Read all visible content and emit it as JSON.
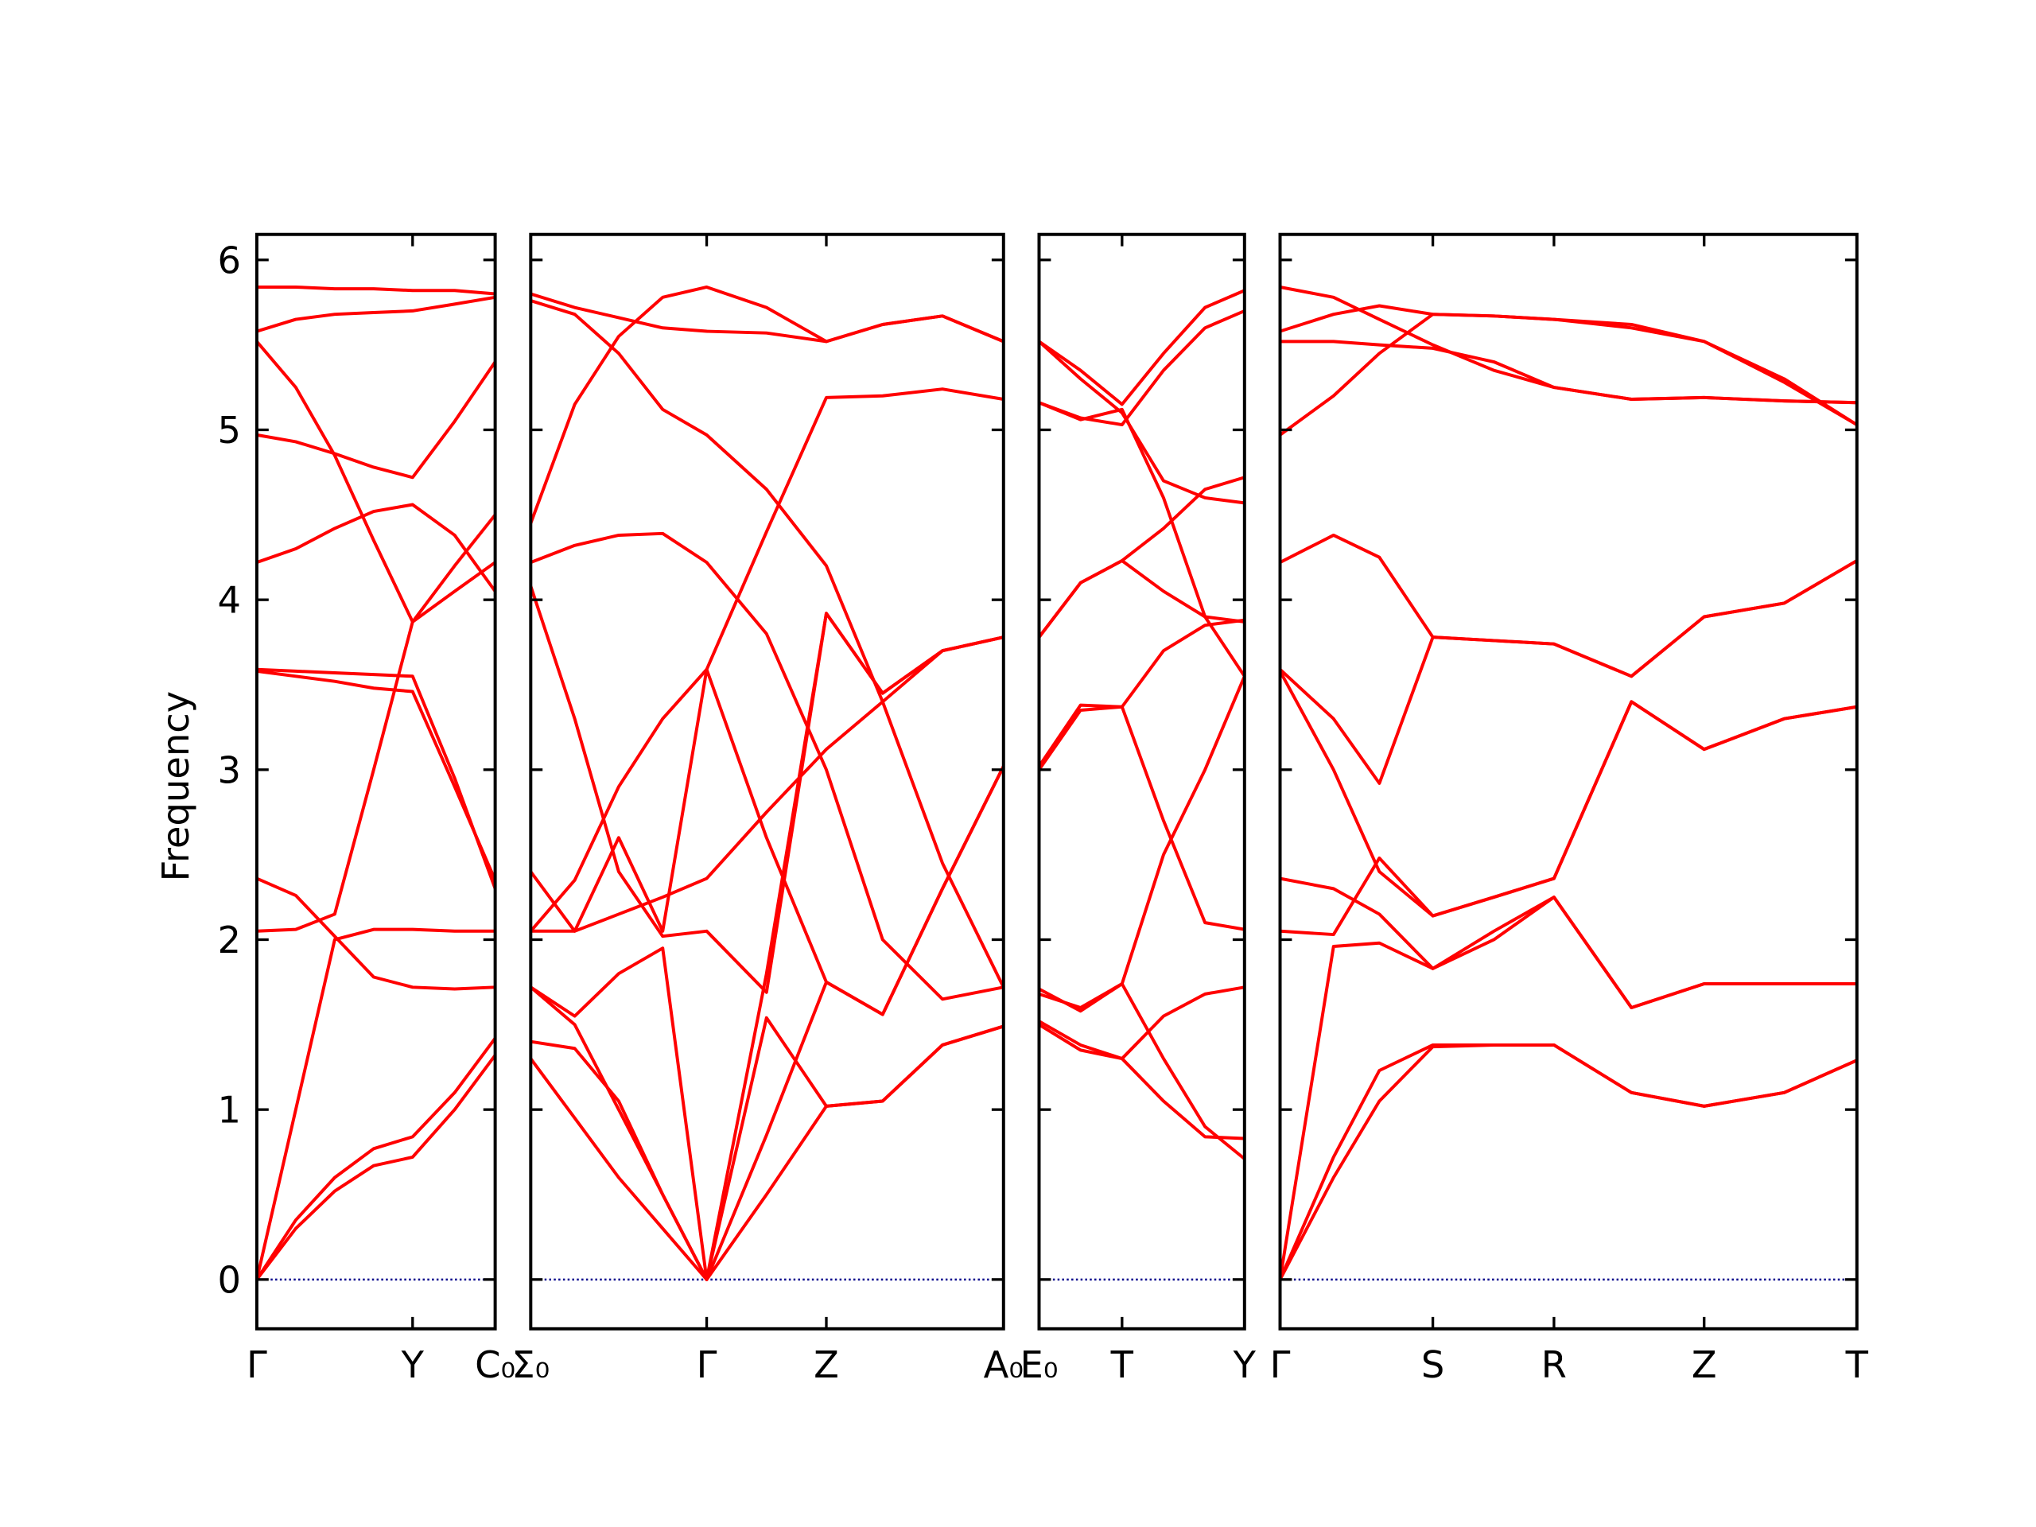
{
  "chart_data": [
    {
      "type": "line",
      "ylabel": "Frequency",
      "color": "#ff0000",
      "hline": 0,
      "hline_color": "#00008b",
      "xlim": [
        0,
        1.53
      ],
      "ylim": [
        -0.29,
        6.15
      ],
      "yticks": [
        0,
        1,
        2,
        3,
        4,
        5,
        6
      ],
      "show_ytick_labels": true,
      "xticks": [
        {
          "value": 0,
          "label": "Γ"
        },
        {
          "value": 1,
          "label": "Y"
        },
        {
          "value": 1.53,
          "label": "C₀"
        }
      ],
      "x": [
        0,
        0.25,
        0.5,
        0.75,
        1.0,
        1.27,
        1.53
      ],
      "series": [
        {
          "values": [
            5.84,
            5.84,
            5.83,
            5.83,
            5.82,
            5.82,
            5.8
          ]
        },
        {
          "values": [
            5.58,
            5.65,
            5.68,
            5.69,
            5.7,
            5.74,
            5.78
          ]
        },
        {
          "values": [
            5.52,
            5.25,
            4.85,
            4.35,
            3.87,
            4.05,
            4.22
          ]
        },
        {
          "values": [
            4.97,
            4.93,
            4.86,
            4.78,
            4.72,
            5.05,
            5.4
          ]
        },
        {
          "values": [
            4.22,
            4.3,
            4.42,
            4.52,
            4.56,
            4.38,
            4.05
          ]
        },
        {
          "values": [
            3.59,
            3.58,
            3.57,
            3.56,
            3.55,
            2.95,
            2.3
          ]
        },
        {
          "values": [
            3.58,
            3.55,
            3.52,
            3.48,
            3.46,
            2.9,
            2.35
          ]
        },
        {
          "values": [
            2.36,
            2.26,
            2.02,
            1.78,
            1.72,
            1.71,
            1.72
          ]
        },
        {
          "values": [
            2.05,
            2.06,
            2.15,
            3.0,
            3.87,
            4.2,
            4.5
          ]
        },
        {
          "values": [
            0,
            1.0,
            2.0,
            2.06,
            2.06,
            2.05,
            2.05
          ]
        },
        {
          "values": [
            0,
            0.35,
            0.6,
            0.77,
            0.84,
            1.1,
            1.42
          ]
        },
        {
          "values": [
            0,
            0.3,
            0.52,
            0.67,
            0.72,
            1.0,
            1.32
          ]
        }
      ]
    },
    {
      "type": "line",
      "color": "#ff0000",
      "hline": 0,
      "hline_color": "#00008b",
      "xlim": [
        0,
        2.687
      ],
      "ylim": [
        -0.29,
        6.15
      ],
      "yticks": [
        0,
        1,
        2,
        3,
        4,
        5,
        6
      ],
      "show_ytick_labels": false,
      "xticks": [
        {
          "value": 0,
          "label": "Σ₀"
        },
        {
          "value": 1,
          "label": "Γ"
        },
        {
          "value": 1.68,
          "label": "Z"
        },
        {
          "value": 2.687,
          "label": "A₀"
        }
      ],
      "x": [
        0,
        0.25,
        0.5,
        0.75,
        1.0,
        1.34,
        1.68,
        2.0,
        2.34,
        2.687
      ],
      "series": [
        {
          "values": [
            5.8,
            5.72,
            5.66,
            5.6,
            5.58,
            5.57,
            5.52,
            5.62,
            5.67,
            5.52
          ]
        },
        {
          "values": [
            5.76,
            5.68,
            5.45,
            5.12,
            4.97,
            4.65,
            4.2,
            3.4,
            2.45,
            1.72
          ]
        },
        {
          "values": [
            4.45,
            5.15,
            5.55,
            5.78,
            5.84,
            5.72,
            5.52,
            5.62,
            5.67,
            5.52
          ]
        },
        {
          "values": [
            2.05,
            2.35,
            2.9,
            3.3,
            3.59,
            4.4,
            5.19,
            5.2,
            5.24,
            5.18
          ]
        },
        {
          "values": [
            4.22,
            4.32,
            4.38,
            4.39,
            4.22,
            3.8,
            3.0,
            2.0,
            1.65,
            1.72
          ]
        },
        {
          "values": [
            4.08,
            3.3,
            2.4,
            2.02,
            2.05,
            1.69,
            3.92,
            3.45,
            3.7,
            3.78
          ]
        },
        {
          "values": [
            2.4,
            2.05,
            2.15,
            2.25,
            2.36,
            2.75,
            3.12,
            3.4,
            3.7,
            3.78
          ]
        },
        {
          "values": [
            2.05,
            2.05,
            2.6,
            2.05,
            3.59,
            2.6,
            1.75,
            1.56,
            2.3,
            3.02
          ]
        },
        {
          "values": [
            1.72,
            1.55,
            1.8,
            1.95,
            0,
            1.54,
            1.02,
            1.05,
            1.38,
            1.49
          ]
        },
        {
          "values": [
            1.4,
            1.36,
            1.05,
            0.5,
            0,
            0.85,
            1.75,
            1.56,
            2.3,
            3.02
          ]
        },
        {
          "values": [
            1.3,
            0.95,
            0.6,
            0.3,
            0,
            0.5,
            1.02,
            1.05,
            1.38,
            1.49
          ]
        },
        {
          "values": [
            1.72,
            1.5,
            1.0,
            0.5,
            0,
            1.8,
            3.92,
            3.45,
            3.7,
            3.78
          ]
        }
      ]
    },
    {
      "type": "line",
      "color": "#ff0000",
      "hline": 0,
      "hline_color": "#00008b",
      "xlim": [
        0,
        2.476
      ],
      "ylim": [
        -0.29,
        6.15
      ],
      "yticks": [
        0,
        1,
        2,
        3,
        4,
        5,
        6
      ],
      "show_ytick_labels": false,
      "xticks": [
        {
          "value": 0,
          "label": "E₀"
        },
        {
          "value": 1,
          "label": "T"
        },
        {
          "value": 2.476,
          "label": "Y"
        }
      ],
      "x": [
        0,
        0.5,
        1.0,
        1.5,
        2.0,
        2.476
      ],
      "series": [
        {
          "values": [
            5.52,
            5.35,
            5.15,
            5.45,
            5.72,
            5.82
          ]
        },
        {
          "values": [
            5.16,
            5.07,
            5.03,
            5.35,
            5.6,
            5.7
          ]
        },
        {
          "values": [
            3.78,
            4.1,
            4.23,
            4.42,
            4.65,
            4.72
          ]
        },
        {
          "values": [
            3.02,
            3.38,
            3.37,
            2.7,
            2.1,
            2.06
          ]
        },
        {
          "values": [
            1.71,
            1.58,
            1.74,
            2.5,
            3.0,
            3.55
          ]
        },
        {
          "values": [
            1.5,
            1.35,
            1.3,
            1.55,
            1.68,
            1.72
          ]
        },
        {
          "values": [
            1.52,
            1.38,
            1.3,
            1.05,
            0.84,
            0.83
          ]
        },
        {
          "values": [
            1.68,
            1.6,
            1.74,
            1.3,
            0.9,
            0.71
          ]
        },
        {
          "values": [
            5.16,
            5.06,
            5.12,
            4.6,
            3.9,
            3.55
          ]
        },
        {
          "values": [
            3.78,
            4.1,
            4.23,
            4.05,
            3.9,
            3.87
          ]
        },
        {
          "values": [
            3.0,
            3.35,
            3.37,
            3.7,
            3.85,
            3.88
          ]
        },
        {
          "values": [
            5.52,
            5.3,
            5.1,
            4.7,
            4.6,
            4.57
          ]
        }
      ]
    },
    {
      "type": "line",
      "color": "#ff0000",
      "hline": 0,
      "hline_color": "#00008b",
      "xlim": [
        0,
        3.776
      ],
      "ylim": [
        -0.29,
        6.15
      ],
      "yticks": [
        0,
        1,
        2,
        3,
        4,
        5,
        6
      ],
      "show_ytick_labels": false,
      "xticks": [
        {
          "value": 0,
          "label": "Γ"
        },
        {
          "value": 1,
          "label": "S"
        },
        {
          "value": 1.793,
          "label": "R"
        },
        {
          "value": 2.776,
          "label": "Z"
        },
        {
          "value": 3.776,
          "label": "T"
        }
      ],
      "x": [
        0,
        0.35,
        0.65,
        1.0,
        1.4,
        1.793,
        2.3,
        2.776,
        3.3,
        3.776
      ],
      "series": [
        {
          "values": [
            5.84,
            5.78,
            5.65,
            5.5,
            5.35,
            5.25,
            5.18,
            5.19,
            5.17,
            5.16
          ]
        },
        {
          "values": [
            5.58,
            5.68,
            5.73,
            5.68,
            5.67,
            5.65,
            5.6,
            5.52,
            5.3,
            5.03
          ]
        },
        {
          "values": [
            5.52,
            5.52,
            5.5,
            5.48,
            5.4,
            5.25,
            5.18,
            5.19,
            5.17,
            5.16
          ]
        },
        {
          "values": [
            4.97,
            5.2,
            5.45,
            5.68,
            5.67,
            5.65,
            5.62,
            5.52,
            5.28,
            5.03
          ]
        },
        {
          "values": [
            4.22,
            4.38,
            4.25,
            3.78,
            3.76,
            3.74,
            3.55,
            3.9,
            3.98,
            4.23
          ]
        },
        {
          "values": [
            3.59,
            3.3,
            2.92,
            3.78,
            3.76,
            3.74,
            3.55,
            3.9,
            3.98,
            4.23
          ]
        },
        {
          "values": [
            3.58,
            3.0,
            2.4,
            2.14,
            2.25,
            2.36,
            3.4,
            3.12,
            3.3,
            3.37
          ]
        },
        {
          "values": [
            2.36,
            2.3,
            2.15,
            1.83,
            2.0,
            2.25,
            1.6,
            1.74,
            1.74,
            1.74
          ]
        },
        {
          "values": [
            2.05,
            2.03,
            2.48,
            2.14,
            2.25,
            2.36,
            3.4,
            3.12,
            3.3,
            3.37
          ]
        },
        {
          "values": [
            0,
            1.96,
            1.98,
            1.83,
            2.05,
            2.25,
            1.6,
            1.74,
            1.74,
            1.74
          ]
        },
        {
          "values": [
            0,
            0.72,
            1.23,
            1.38,
            1.38,
            1.38,
            1.1,
            1.02,
            1.1,
            1.29
          ]
        },
        {
          "values": [
            0,
            0.6,
            1.05,
            1.37,
            1.38,
            1.38,
            1.1,
            1.02,
            1.1,
            1.29
          ]
        }
      ]
    }
  ]
}
